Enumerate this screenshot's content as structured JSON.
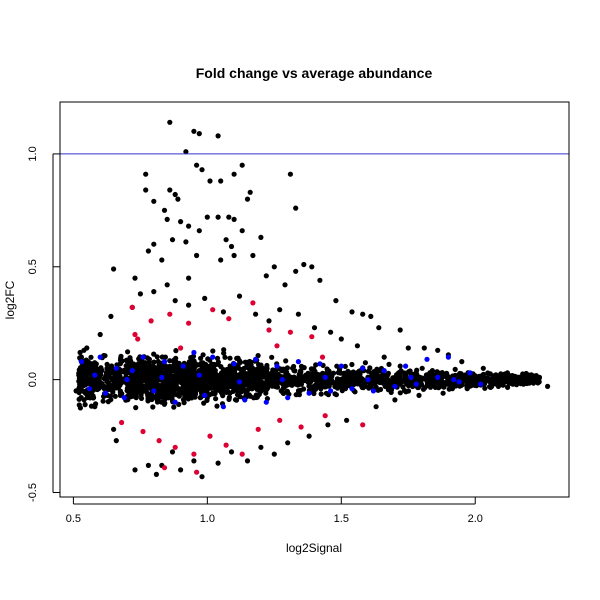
{
  "chart_data": {
    "type": "scatter",
    "title": "Fold change vs average abundance",
    "xlabel": "log2Signal",
    "ylabel": "log2FC",
    "xlim": [
      0.45,
      2.35
    ],
    "ylim": [
      -0.52,
      1.23
    ],
    "xticks": [
      0.5,
      1.0,
      1.5,
      2.0
    ],
    "xtick_labels": [
      "0.5",
      "1.0",
      "1.5",
      "2.0"
    ],
    "yticks": [
      -0.5,
      0.0,
      0.5,
      1.0
    ],
    "ytick_labels": [
      "-0.5",
      "0.0",
      "0.5",
      "1.0"
    ],
    "grid": false,
    "reference_line": {
      "y": 1.0,
      "color": "#3333cc"
    },
    "colors": {
      "black": "#000000",
      "blue": "#0000ff",
      "red": "#dd0033"
    },
    "series": [
      {
        "color": "black",
        "points": [
          [
            0.86,
            1.14
          ],
          [
            0.95,
            1.1
          ],
          [
            0.97,
            1.09
          ],
          [
            1.04,
            1.08
          ],
          [
            0.92,
            1.01
          ],
          [
            0.96,
            0.95
          ],
          [
            1.13,
            0.95
          ],
          [
            0.98,
            0.93
          ],
          [
            1.1,
            0.91
          ],
          [
            1.31,
            0.91
          ],
          [
            0.77,
            0.91
          ],
          [
            1.01,
            0.88
          ],
          [
            1.05,
            0.88
          ],
          [
            0.77,
            0.84
          ],
          [
            0.86,
            0.84
          ],
          [
            0.88,
            0.82
          ],
          [
            0.89,
            0.8
          ],
          [
            1.16,
            0.83
          ],
          [
            1.15,
            0.8
          ],
          [
            0.8,
            0.79
          ],
          [
            1.33,
            0.76
          ],
          [
            0.84,
            0.75
          ],
          [
            0.9,
            0.7
          ],
          [
            0.85,
            0.71
          ],
          [
            1.0,
            0.72
          ],
          [
            1.04,
            0.72
          ],
          [
            1.08,
            0.72
          ],
          [
            1.1,
            0.71
          ],
          [
            0.93,
            0.68
          ],
          [
            0.97,
            0.66
          ],
          [
            1.13,
            0.66
          ],
          [
            1.2,
            0.63
          ],
          [
            0.87,
            0.62
          ],
          [
            0.92,
            0.61
          ],
          [
            1.07,
            0.62
          ],
          [
            1.09,
            0.59
          ],
          [
            0.8,
            0.6
          ],
          [
            0.78,
            0.57
          ],
          [
            0.96,
            0.55
          ],
          [
            1.1,
            0.55
          ],
          [
            1.17,
            0.55
          ],
          [
            1.05,
            0.53
          ],
          [
            0.83,
            0.53
          ],
          [
            0.65,
            0.49
          ],
          [
            1.36,
            0.51
          ],
          [
            1.33,
            0.48
          ],
          [
            1.25,
            0.5
          ],
          [
            1.39,
            0.5
          ],
          [
            0.73,
            0.45
          ],
          [
            0.93,
            0.45
          ],
          [
            1.22,
            0.46
          ],
          [
            1.48,
            0.35
          ],
          [
            1.42,
            0.44
          ],
          [
            1.29,
            0.42
          ],
          [
            1.54,
            0.3
          ],
          [
            1.58,
            0.29
          ],
          [
            1.61,
            0.28
          ],
          [
            1.64,
            0.23
          ],
          [
            1.72,
            0.22
          ],
          [
            1.75,
            0.14
          ],
          [
            1.81,
            0.14
          ],
          [
            1.86,
            0.13
          ],
          [
            1.9,
            0.11
          ],
          [
            1.95,
            0.08
          ],
          [
            2.03,
            0.05
          ],
          [
            2.12,
            0.03
          ],
          [
            2.2,
            0.02
          ],
          [
            2.24,
            0.01
          ],
          [
            2.27,
            -0.03
          ],
          [
            2.18,
            -0.02
          ],
          [
            2.08,
            -0.02
          ],
          [
            0.52,
            0.02
          ],
          [
            0.51,
            -0.05
          ],
          [
            0.54,
            -0.09
          ],
          [
            0.58,
            -0.12
          ],
          [
            0.65,
            -0.22
          ],
          [
            0.66,
            -0.27
          ],
          [
            0.73,
            -0.4
          ],
          [
            0.78,
            -0.38
          ],
          [
            0.81,
            -0.42
          ],
          [
            0.83,
            -0.38
          ],
          [
            0.87,
            -0.32
          ],
          [
            0.9,
            -0.4
          ],
          [
            0.95,
            -0.36
          ],
          [
            0.98,
            -0.43
          ],
          [
            1.04,
            -0.37
          ],
          [
            1.09,
            -0.32
          ],
          [
            1.15,
            -0.36
          ],
          [
            1.2,
            -0.3
          ],
          [
            1.25,
            -0.33
          ],
          [
            1.3,
            -0.28
          ],
          [
            1.38,
            -0.25
          ],
          [
            1.45,
            -0.2
          ],
          [
            1.52,
            -0.18
          ],
          [
            1.63,
            -0.12
          ],
          [
            1.7,
            -0.09
          ],
          [
            1.79,
            -0.07
          ],
          [
            1.88,
            -0.06
          ],
          [
            1.97,
            -0.04
          ],
          [
            0.6,
            0.2
          ],
          [
            0.55,
            0.14
          ],
          [
            0.53,
            0.1
          ],
          [
            0.64,
            0.28
          ],
          [
            0.72,
            0.32
          ],
          [
            0.75,
            0.38
          ],
          [
            0.8,
            0.39
          ],
          [
            0.85,
            0.42
          ],
          [
            0.88,
            0.35
          ],
          [
            0.93,
            0.33
          ],
          [
            0.99,
            0.36
          ],
          [
            1.06,
            0.3
          ],
          [
            1.12,
            0.37
          ],
          [
            1.18,
            0.29
          ],
          [
            1.23,
            0.26
          ],
          [
            1.27,
            0.31
          ],
          [
            1.34,
            0.29
          ],
          [
            1.4,
            0.23
          ],
          [
            1.46,
            0.21
          ],
          [
            1.5,
            0.18
          ],
          [
            1.56,
            0.15
          ],
          [
            1.66,
            0.1
          ],
          [
            1.72,
            0.06
          ],
          [
            1.84,
            0.04
          ]
        ]
      },
      {
        "color": "blue",
        "points": [
          [
            0.53,
            0.08
          ],
          [
            0.56,
            -0.04
          ],
          [
            0.58,
            0.02
          ],
          [
            0.62,
            -0.06
          ],
          [
            0.66,
            0.05
          ],
          [
            0.69,
            -0.08
          ],
          [
            0.72,
            0.04
          ],
          [
            0.76,
            0.1
          ],
          [
            0.8,
            -0.05
          ],
          [
            0.84,
            0.08
          ],
          [
            0.88,
            -0.1
          ],
          [
            0.91,
            0.06
          ],
          [
            0.95,
            0.12
          ],
          [
            0.99,
            -0.07
          ],
          [
            1.02,
            0.1
          ],
          [
            1.06,
            -0.12
          ],
          [
            1.1,
            0.07
          ],
          [
            1.14,
            -0.09
          ],
          [
            1.18,
            0.09
          ],
          [
            1.22,
            -0.1
          ],
          [
            1.26,
            0.06
          ],
          [
            1.3,
            -0.08
          ],
          [
            1.34,
            0.08
          ],
          [
            1.38,
            -0.06
          ],
          [
            1.42,
            0.07
          ],
          [
            1.46,
            -0.05
          ],
          [
            1.5,
            0.06
          ],
          [
            1.54,
            -0.04
          ],
          [
            1.58,
            0.05
          ],
          [
            1.62,
            -0.05
          ],
          [
            1.66,
            0.04
          ],
          [
            1.7,
            -0.03
          ],
          [
            1.74,
            0.06
          ],
          [
            1.78,
            -0.02
          ],
          [
            1.82,
            0.09
          ],
          [
            1.86,
            0.01
          ],
          [
            1.9,
            0.1
          ],
          [
            1.94,
            -0.01
          ],
          [
            1.98,
            0.03
          ],
          [
            2.02,
            -0.02
          ],
          [
            0.6,
            0.1
          ],
          [
            0.7,
            0.0
          ],
          [
            0.83,
            0.01
          ],
          [
            0.97,
            0.02
          ],
          [
            1.12,
            -0.01
          ],
          [
            1.28,
            0.0
          ],
          [
            1.44,
            0.01
          ],
          [
            1.6,
            0.0
          ],
          [
            1.76,
            0.01
          ],
          [
            1.92,
            0.0
          ]
        ]
      },
      {
        "color": "red",
        "points": [
          [
            0.72,
            0.32
          ],
          [
            0.79,
            0.26
          ],
          [
            0.86,
            0.29
          ],
          [
            0.93,
            0.25
          ],
          [
            1.02,
            0.31
          ],
          [
            1.08,
            0.27
          ],
          [
            1.17,
            0.34
          ],
          [
            1.23,
            0.22
          ],
          [
            1.31,
            0.21
          ],
          [
            1.39,
            0.19
          ],
          [
            0.74,
            0.18
          ],
          [
            0.9,
            0.14
          ],
          [
            1.26,
            0.15
          ],
          [
            0.68,
            -0.19
          ],
          [
            0.76,
            -0.23
          ],
          [
            0.82,
            -0.27
          ],
          [
            0.88,
            -0.3
          ],
          [
            0.95,
            -0.33
          ],
          [
            1.01,
            -0.25
          ],
          [
            1.07,
            -0.29
          ],
          [
            1.13,
            -0.33
          ],
          [
            1.19,
            -0.22
          ],
          [
            1.27,
            -0.18
          ],
          [
            1.35,
            -0.21
          ],
          [
            1.44,
            -0.16
          ],
          [
            1.58,
            -0.2
          ],
          [
            0.84,
            -0.39
          ],
          [
            0.96,
            -0.41
          ],
          [
            0.73,
            0.2
          ],
          [
            1.43,
            0.1
          ]
        ]
      }
    ]
  }
}
